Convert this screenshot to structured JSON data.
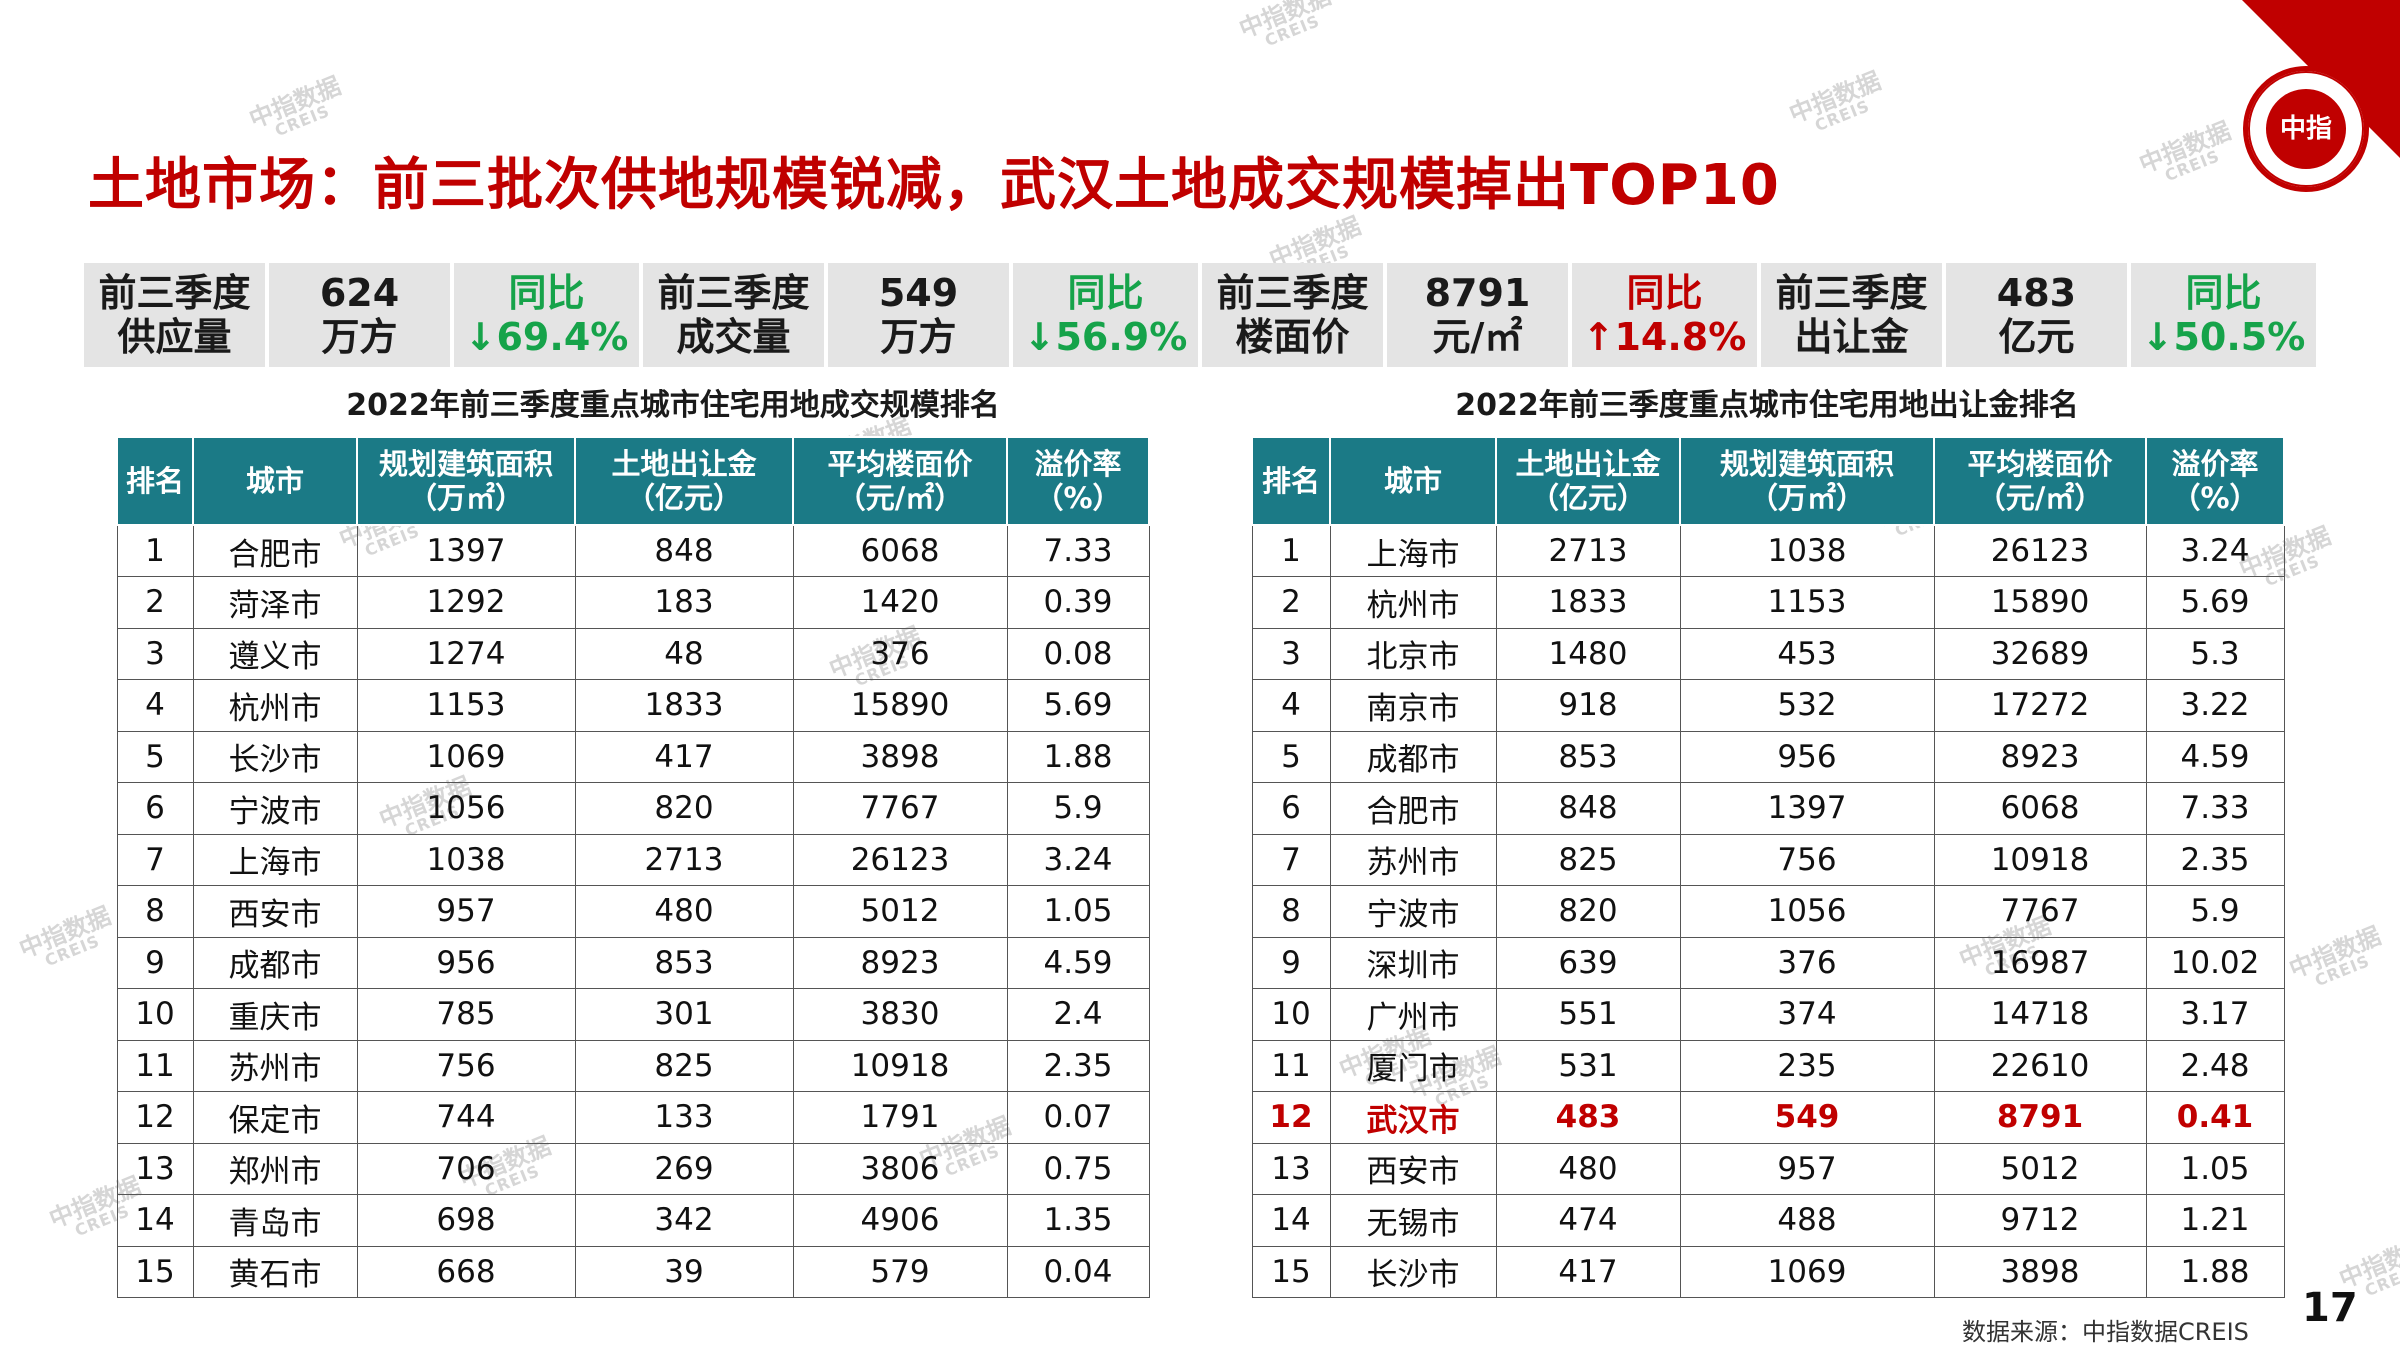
{
  "page": {
    "title": "土地市场：前三批次供地规模锐减，武汉土地成交规模掉出TOP10",
    "page_number": "17",
    "source": "数据来源：中指数据CREIS",
    "watermark_cn": "中指数据",
    "watermark_en": "CREIS",
    "logo_text": "中指",
    "accent_color": "#c00000",
    "header_color": "#1b7a86"
  },
  "summary": [
    {
      "label": [
        "前三季度",
        "供应量"
      ],
      "value": [
        "624",
        "万方"
      ],
      "yoy_label": "同比",
      "yoy": "↓69.4%",
      "direction": "down"
    },
    {
      "label": [
        "前三季度",
        "成交量"
      ],
      "value": [
        "549",
        "万方"
      ],
      "yoy_label": "同比",
      "yoy": "↓56.9%",
      "direction": "down"
    },
    {
      "label": [
        "前三季度",
        "楼面价"
      ],
      "value": [
        "8791",
        "元/㎡"
      ],
      "yoy_label": "同比",
      "yoy": "↑14.8%",
      "direction": "up"
    },
    {
      "label": [
        "前三季度",
        "出让金"
      ],
      "value": [
        "483",
        "亿元"
      ],
      "yoy_label": "同比",
      "yoy": "↓50.5%",
      "direction": "down"
    }
  ],
  "left_table": {
    "title": "2022年前三季度重点城市住宅用地成交规模排名",
    "headers": [
      [
        "排名"
      ],
      [
        "城市"
      ],
      [
        "规划建筑面积",
        "（万㎡）"
      ],
      [
        "土地出让金",
        "（亿元）"
      ],
      [
        "平均楼面价",
        "（元/㎡）"
      ],
      [
        "溢价率",
        "（%）"
      ]
    ],
    "rows": [
      [
        "1",
        "合肥市",
        "1397",
        "848",
        "6068",
        "7.33"
      ],
      [
        "2",
        "菏泽市",
        "1292",
        "183",
        "1420",
        "0.39"
      ],
      [
        "3",
        "遵义市",
        "1274",
        "48",
        "376",
        "0.08"
      ],
      [
        "4",
        "杭州市",
        "1153",
        "1833",
        "15890",
        "5.69"
      ],
      [
        "5",
        "长沙市",
        "1069",
        "417",
        "3898",
        "1.88"
      ],
      [
        "6",
        "宁波市",
        "1056",
        "820",
        "7767",
        "5.9"
      ],
      [
        "7",
        "上海市",
        "1038",
        "2713",
        "26123",
        "3.24"
      ],
      [
        "8",
        "西安市",
        "957",
        "480",
        "5012",
        "1.05"
      ],
      [
        "9",
        "成都市",
        "956",
        "853",
        "8923",
        "4.59"
      ],
      [
        "10",
        "重庆市",
        "785",
        "301",
        "3830",
        "2.4"
      ],
      [
        "11",
        "苏州市",
        "756",
        "825",
        "10918",
        "2.35"
      ],
      [
        "12",
        "保定市",
        "744",
        "133",
        "1791",
        "0.07"
      ],
      [
        "13",
        "郑州市",
        "706",
        "269",
        "3806",
        "0.75"
      ],
      [
        "14",
        "青岛市",
        "698",
        "342",
        "4906",
        "1.35"
      ],
      [
        "15",
        "黄石市",
        "668",
        "39",
        "579",
        "0.04"
      ]
    ]
  },
  "right_table": {
    "title": "2022年前三季度重点城市住宅用地出让金排名",
    "headers": [
      [
        "排名"
      ],
      [
        "城市"
      ],
      [
        "土地出让金",
        "（亿元）"
      ],
      [
        "规划建筑面积",
        "（万㎡）"
      ],
      [
        "平均楼面价",
        "（元/㎡）"
      ],
      [
        "溢价率",
        "（%）"
      ]
    ],
    "highlight_row": 11,
    "rows": [
      [
        "1",
        "上海市",
        "2713",
        "1038",
        "26123",
        "3.24"
      ],
      [
        "2",
        "杭州市",
        "1833",
        "1153",
        "15890",
        "5.69"
      ],
      [
        "3",
        "北京市",
        "1480",
        "453",
        "32689",
        "5.3"
      ],
      [
        "4",
        "南京市",
        "918",
        "532",
        "17272",
        "3.22"
      ],
      [
        "5",
        "成都市",
        "853",
        "956",
        "8923",
        "4.59"
      ],
      [
        "6",
        "合肥市",
        "848",
        "1397",
        "6068",
        "7.33"
      ],
      [
        "7",
        "苏州市",
        "825",
        "756",
        "10918",
        "2.35"
      ],
      [
        "8",
        "宁波市",
        "820",
        "1056",
        "7767",
        "5.9"
      ],
      [
        "9",
        "深圳市",
        "639",
        "376",
        "16987",
        "10.02"
      ],
      [
        "10",
        "广州市",
        "551",
        "374",
        "14718",
        "3.17"
      ],
      [
        "11",
        "厦门市",
        "531",
        "235",
        "22610",
        "2.48"
      ],
      [
        "12",
        "武汉市",
        "483",
        "549",
        "8791",
        "0.41"
      ],
      [
        "13",
        "西安市",
        "480",
        "957",
        "5012",
        "1.05"
      ],
      [
        "14",
        "无锡市",
        "474",
        "488",
        "9712",
        "1.21"
      ],
      [
        "15",
        "长沙市",
        "417",
        "1069",
        "3898",
        "1.88"
      ]
    ]
  }
}
